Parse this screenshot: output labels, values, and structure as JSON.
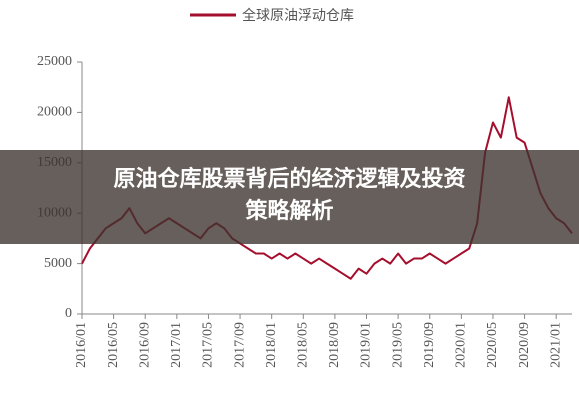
{
  "chart_data": {
    "type": "line",
    "categories": [
      "2016/01",
      null,
      null,
      null,
      "2016/05",
      null,
      null,
      null,
      "2016/09",
      null,
      null,
      null,
      "2017/01",
      null,
      null,
      null,
      "2017/05",
      null,
      null,
      null,
      "2017/09",
      null,
      null,
      null,
      "2018/01",
      null,
      null,
      null,
      "2018/05",
      null,
      null,
      null,
      "2018/09",
      null,
      null,
      null,
      "2019/01",
      null,
      null,
      null,
      "2019/05",
      null,
      null,
      null,
      "2019/09",
      null,
      null,
      null,
      "2020/01",
      null,
      null,
      null,
      "2020/05",
      null,
      null,
      null,
      "2020/09",
      null,
      null,
      null,
      "2021/01",
      null,
      null
    ],
    "series": [
      {
        "name": "全球原油浮动仓库",
        "color": "#a50f2d",
        "values": [
          5000,
          6500,
          7500,
          8500,
          9000,
          9500,
          10500,
          9000,
          8000,
          8500,
          9000,
          9500,
          9000,
          8500,
          8000,
          7500,
          8500,
          9000,
          8500,
          7500,
          7000,
          6500,
          6000,
          6000,
          5500,
          6000,
          5500,
          6000,
          5500,
          5000,
          5500,
          5000,
          4500,
          4000,
          3500,
          4500,
          4000,
          5000,
          5500,
          5000,
          6000,
          5000,
          5500,
          5500,
          6000,
          5500,
          5000,
          5500,
          6000,
          6500,
          9000,
          16000,
          19000,
          17500,
          21500,
          17500,
          17000,
          14500,
          12000,
          10500,
          9500,
          9000,
          8000
        ]
      }
    ],
    "ylim": [
      0,
      25000
    ],
    "yticks": [
      0,
      5000,
      10000,
      15000,
      20000,
      25000
    ],
    "legend": "top"
  },
  "banner": {
    "lines": [
      "原油仓库股票背后的经济逻辑及投资",
      "策略解析"
    ]
  }
}
